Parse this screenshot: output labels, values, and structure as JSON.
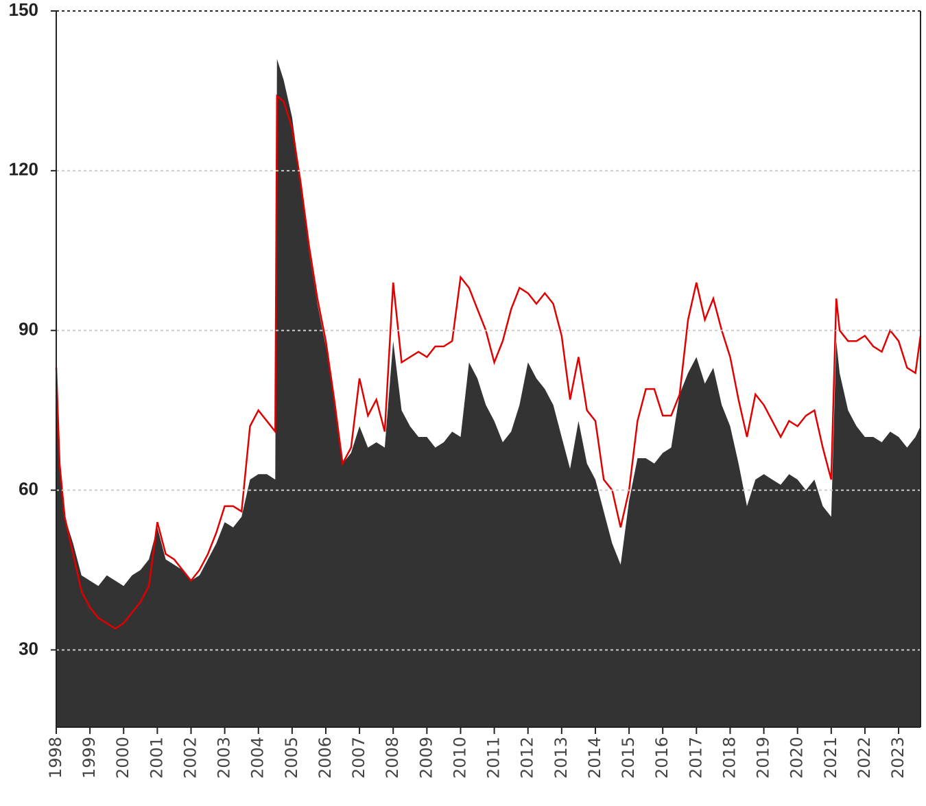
{
  "chart_data": {
    "type": "line",
    "x": [
      1998,
      1998.1,
      1998.25,
      1998.5,
      1998.75,
      1999,
      1999.25,
      1999.5,
      1999.75,
      2000,
      2000.25,
      2000.5,
      2000.75,
      2001,
      2001.25,
      2001.5,
      2001.75,
      2002,
      2002.25,
      2002.5,
      2002.75,
      2003,
      2003.25,
      2003.5,
      2003.75,
      2004,
      2004.25,
      2004.5,
      2004.55,
      2004.75,
      2005,
      2005.25,
      2005.5,
      2005.75,
      2006,
      2006.25,
      2006.5,
      2006.75,
      2007,
      2007.25,
      2007.5,
      2007.75,
      2008,
      2008.25,
      2008.5,
      2008.75,
      2009,
      2009.25,
      2009.5,
      2009.75,
      2010,
      2010.25,
      2010.5,
      2010.75,
      2011,
      2011.25,
      2011.5,
      2011.75,
      2012,
      2012.25,
      2012.5,
      2012.75,
      2013,
      2013.25,
      2013.5,
      2013.75,
      2014,
      2014.25,
      2014.5,
      2014.75,
      2015,
      2015.25,
      2015.5,
      2015.75,
      2016,
      2016.25,
      2016.5,
      2016.75,
      2017,
      2017.25,
      2017.5,
      2017.75,
      2018,
      2018.25,
      2018.5,
      2018.75,
      2019,
      2019.25,
      2019.5,
      2019.75,
      2020,
      2020.25,
      2020.5,
      2020.75,
      2021,
      2021.15,
      2021.25,
      2021.5,
      2021.75,
      2022,
      2022.25,
      2022.5,
      2022.75,
      2023,
      2023.25,
      2023.5,
      2023.65
    ],
    "series": [
      {
        "color": "#333333",
        "fill": true,
        "values": [
          80,
          65,
          55,
          50,
          44,
          43,
          42,
          44,
          43,
          42,
          44,
          45,
          47,
          53,
          47,
          46,
          45,
          43,
          44,
          47,
          50,
          54,
          53,
          55,
          62,
          63,
          63,
          62,
          141,
          137,
          130,
          118,
          105,
          95,
          87,
          77,
          65,
          67,
          72,
          68,
          69,
          68,
          88,
          75,
          72,
          70,
          70,
          68,
          69,
          71,
          70,
          84,
          81,
          76,
          73,
          69,
          71,
          76,
          84,
          81,
          79,
          76,
          70,
          64,
          73,
          65,
          62,
          56,
          50,
          46,
          58,
          66,
          66,
          65,
          67,
          68,
          78,
          82,
          85,
          80,
          83,
          76,
          72,
          65,
          57,
          62,
          63,
          62,
          61,
          63,
          62,
          60,
          62,
          57,
          55,
          88,
          82,
          75,
          72,
          70,
          70,
          69,
          71,
          70,
          68,
          70,
          72
        ]
      },
      {
        "color": "#e00000",
        "fill": false,
        "values": [
          83,
          65,
          55,
          48,
          41,
          38,
          36,
          35,
          34,
          35,
          37,
          39,
          42,
          54,
          48,
          47,
          45,
          43,
          45,
          48,
          52,
          57,
          57,
          56,
          72,
          75,
          73,
          71,
          134,
          133,
          128,
          118,
          106,
          96,
          88,
          77,
          65,
          68,
          81,
          74,
          77,
          71,
          99,
          84,
          85,
          86,
          85,
          87,
          87,
          88,
          100,
          98,
          94,
          90,
          84,
          88,
          94,
          98,
          97,
          95,
          97,
          95,
          89,
          77,
          85,
          75,
          73,
          62,
          60,
          53,
          60,
          73,
          79,
          79,
          74,
          74,
          78,
          92,
          99,
          92,
          96,
          90,
          85,
          77,
          70,
          78,
          76,
          73,
          70,
          73,
          72,
          74,
          75,
          68,
          62,
          96,
          90,
          88,
          88,
          89,
          87,
          86,
          90,
          88,
          83,
          82,
          89
        ]
      }
    ],
    "xlim": [
      1998,
      2023.65
    ],
    "xticks": [
      1998,
      1999,
      2000,
      2001,
      2002,
      2003,
      2004,
      2005,
      2006,
      2007,
      2008,
      2009,
      2010,
      2011,
      2012,
      2013,
      2014,
      2015,
      2016,
      2017,
      2018,
      2019,
      2020,
      2021,
      2022,
      2023
    ],
    "ylim": [
      15.5,
      150
    ],
    "yticks": [
      30,
      60,
      90,
      120,
      150
    ],
    "grid": true
  }
}
